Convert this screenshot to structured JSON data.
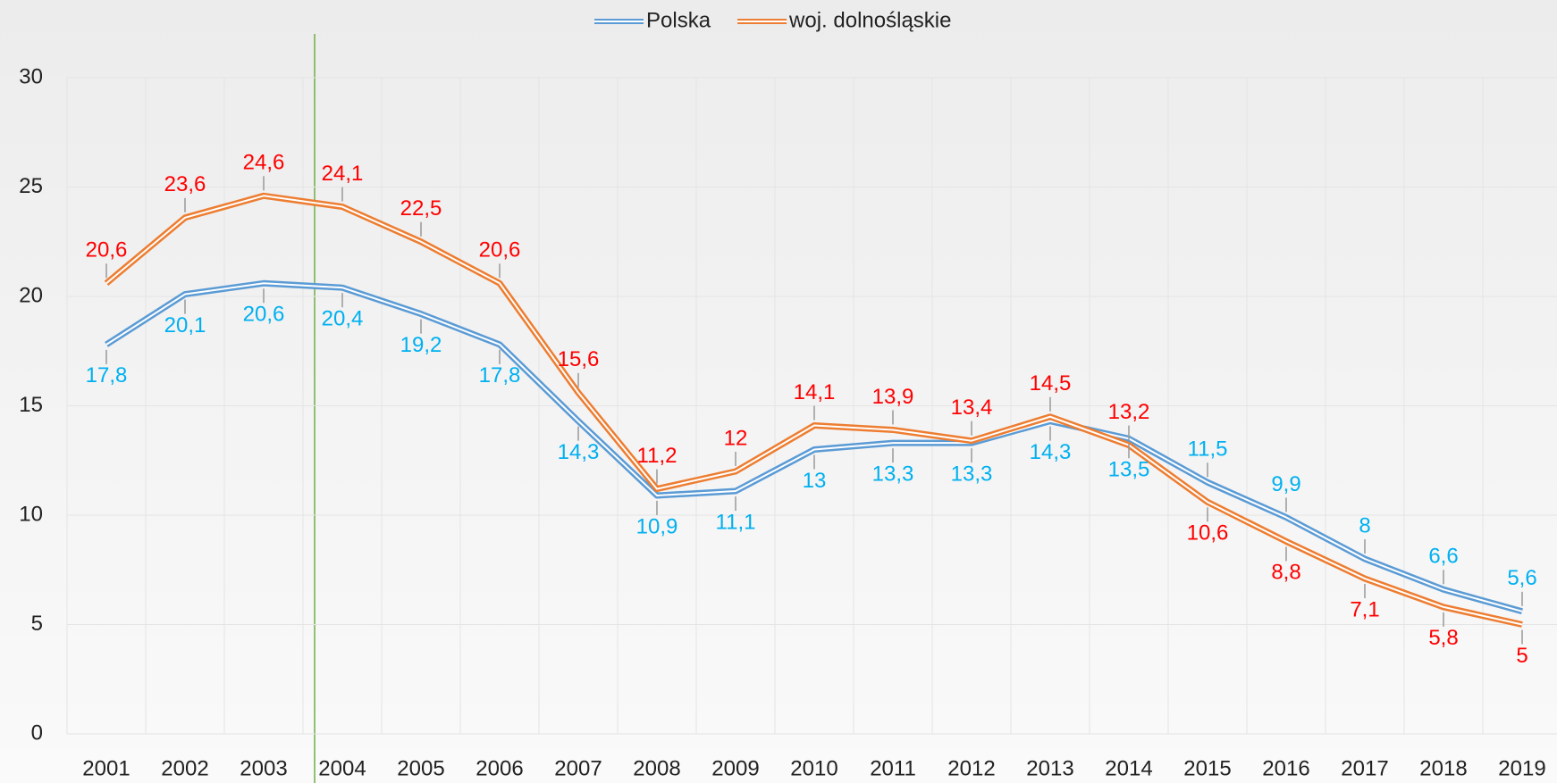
{
  "chart_data": {
    "type": "line",
    "categories": [
      "2001",
      "2002",
      "2003",
      "2004",
      "2005",
      "2006",
      "2007",
      "2008",
      "2009",
      "2010",
      "2011",
      "2012",
      "2013",
      "2014",
      "2015",
      "2016",
      "2017",
      "2018",
      "2019"
    ],
    "series": [
      {
        "name": "Polska",
        "color": "#5b9bd5",
        "label_color": "#00b0f0",
        "values": [
          17.8,
          20.1,
          20.6,
          20.4,
          19.2,
          17.8,
          14.3,
          10.9,
          11.1,
          13,
          13.3,
          13.3,
          14.3,
          13.5,
          11.5,
          9.9,
          8,
          6.6,
          5.6
        ],
        "value_labels": [
          "17,8",
          "20,1",
          "20,6",
          "20,4",
          "19,2",
          "17,8",
          "14,3",
          "10,9",
          "11,1",
          "13",
          "13,3",
          "13,3",
          "14,3",
          "13,5",
          "11,5",
          "9,9",
          "8",
          "6,6",
          "5,6"
        ]
      },
      {
        "name": "woj. dolnośląskie",
        "color": "#ed7d31",
        "label_color": "#ff0000",
        "values": [
          20.6,
          23.6,
          24.6,
          24.1,
          22.5,
          20.6,
          15.6,
          11.2,
          12,
          14.1,
          13.9,
          13.4,
          14.5,
          13.2,
          10.6,
          8.8,
          7.1,
          5.8,
          5
        ],
        "value_labels": [
          "20,6",
          "23,6",
          "24,6",
          "24,1",
          "22,5",
          "20,6",
          "15,6",
          "11,2",
          "12",
          "14,1",
          "13,9",
          "13,4",
          "14,5",
          "13,2",
          "10,6",
          "8,8",
          "7,1",
          "5,8",
          "5"
        ]
      }
    ],
    "ylim": [
      0,
      30
    ],
    "yticks": [
      0,
      5,
      10,
      15,
      20,
      25,
      30
    ],
    "grid": true,
    "legend": "top"
  }
}
